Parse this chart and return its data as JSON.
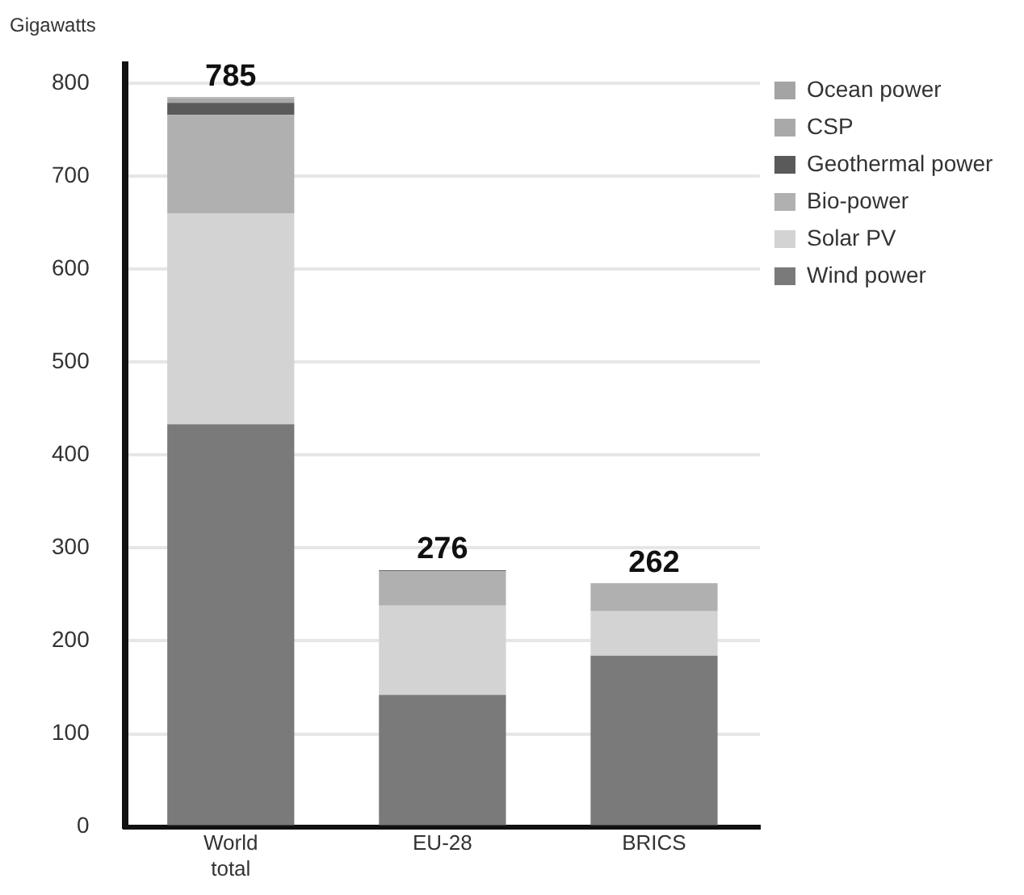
{
  "chart_data": {
    "type": "bar",
    "stacked": true,
    "ylabel": "Gigawatts",
    "categories": [
      "World total",
      "EU-28",
      "BRICS"
    ],
    "series": [
      {
        "name": "Wind power",
        "color": "#7a7a7a",
        "values": [
          433,
          142,
          184
        ]
      },
      {
        "name": "Solar PV",
        "color": "#d3d3d3",
        "values": [
          227,
          96,
          48
        ]
      },
      {
        "name": "Bio-power",
        "color": "#b0b0b0",
        "values": [
          106,
          37,
          30
        ]
      },
      {
        "name": "Geothermal power",
        "color": "#5a5a5a",
        "values": [
          13,
          1,
          null
        ]
      },
      {
        "name": "CSP",
        "color": "#a9a9a9",
        "values": [
          5,
          null,
          null
        ]
      },
      {
        "name": "Ocean power",
        "color": "#a4a4a4",
        "values": [
          1,
          null,
          null
        ]
      }
    ],
    "totals": [
      "785",
      "276",
      "262"
    ],
    "ylim": [
      0,
      820
    ],
    "yticks": [
      0,
      100,
      200,
      300,
      400,
      500,
      600,
      700,
      800
    ],
    "grid": "y",
    "legend": "top right"
  }
}
